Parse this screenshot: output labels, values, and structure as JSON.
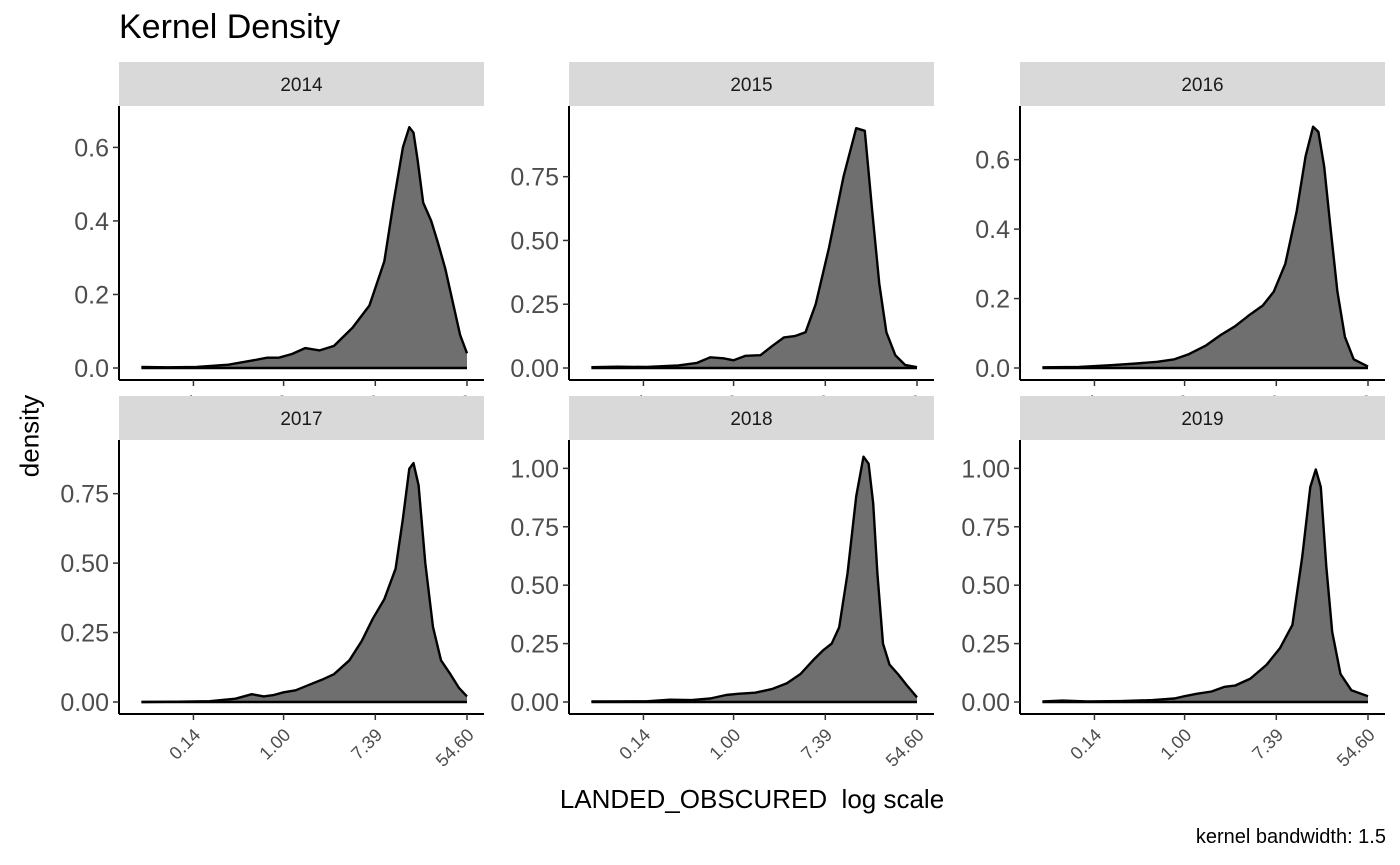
{
  "chart_data": {
    "type": "area",
    "title": "Kernel Density",
    "xlabel": "LANDED_OBSCURED  log scale",
    "ylabel": "density",
    "caption": "kernel bandwidth: 1.5",
    "x_scale": "log",
    "x_ticks": [
      "0.14",
      "1.00",
      "7.39",
      "54.60"
    ],
    "xlim": [
      0.04,
      54.6
    ],
    "grid": false,
    "fill_color": "#6f6f6f",
    "strip_color": "#d9d9d9",
    "panels": [
      {
        "label": "2014",
        "ylim": [
          0,
          0.68
        ],
        "y_ticks": [
          "0.0",
          "0.2",
          "0.4",
          "0.6"
        ],
        "x": [
          0.045,
          0.08,
          0.15,
          0.3,
          0.5,
          0.7,
          0.9,
          1.2,
          1.6,
          2.2,
          3.0,
          4.5,
          6.5,
          9.0,
          11.0,
          13.5,
          15.5,
          17.0,
          18.5,
          21.0,
          25.0,
          29.0,
          34.0,
          40.0,
          47.0,
          54.6
        ],
        "y": [
          0.003,
          0.002,
          0.003,
          0.009,
          0.02,
          0.028,
          0.028,
          0.038,
          0.054,
          0.048,
          0.06,
          0.11,
          0.17,
          0.29,
          0.45,
          0.6,
          0.655,
          0.64,
          0.57,
          0.45,
          0.4,
          0.34,
          0.27,
          0.18,
          0.09,
          0.04
        ]
      },
      {
        "label": "2015",
        "ylim": [
          0,
          0.98
        ],
        "y_ticks": [
          "0.00",
          "0.25",
          "0.50",
          "0.75"
        ],
        "x": [
          0.045,
          0.08,
          0.15,
          0.3,
          0.45,
          0.6,
          0.8,
          1.0,
          1.3,
          1.8,
          2.3,
          3.0,
          3.8,
          4.8,
          6.0,
          8.0,
          11.0,
          14.5,
          17.5,
          20.5,
          24.0,
          28.0,
          34.0,
          42.0,
          54.6
        ],
        "y": [
          0.003,
          0.005,
          0.004,
          0.01,
          0.02,
          0.042,
          0.038,
          0.03,
          0.048,
          0.05,
          0.085,
          0.12,
          0.125,
          0.14,
          0.25,
          0.47,
          0.75,
          0.94,
          0.93,
          0.62,
          0.33,
          0.14,
          0.05,
          0.012,
          0.003
        ]
      },
      {
        "label": "2016",
        "ylim": [
          0,
          0.72
        ],
        "y_ticks": [
          "0.0",
          "0.2",
          "0.4",
          "0.6"
        ],
        "x": [
          0.045,
          0.1,
          0.2,
          0.35,
          0.55,
          0.8,
          1.1,
          1.6,
          2.2,
          3.0,
          4.0,
          5.5,
          7.0,
          9.0,
          11.5,
          14.0,
          16.5,
          18.5,
          21.0,
          24.0,
          28.0,
          33.0,
          40.0,
          54.6
        ],
        "y": [
          0.002,
          0.003,
          0.008,
          0.013,
          0.018,
          0.025,
          0.04,
          0.065,
          0.095,
          0.12,
          0.15,
          0.18,
          0.22,
          0.3,
          0.45,
          0.61,
          0.695,
          0.68,
          0.58,
          0.41,
          0.22,
          0.09,
          0.025,
          0.004
        ]
      },
      {
        "label": "2017",
        "ylim": [
          0,
          0.9
        ],
        "y_ticks": [
          "0.00",
          "0.25",
          "0.50",
          "0.75"
        ],
        "x": [
          0.045,
          0.1,
          0.2,
          0.35,
          0.5,
          0.65,
          0.8,
          1.0,
          1.3,
          1.7,
          2.3,
          3.0,
          4.2,
          5.5,
          7.0,
          9.0,
          11.5,
          13.5,
          15.5,
          17.0,
          19.0,
          22.0,
          26.0,
          31.0,
          38.0,
          46.0,
          54.6
        ],
        "y": [
          0.0,
          0.001,
          0.003,
          0.012,
          0.028,
          0.02,
          0.025,
          0.035,
          0.042,
          0.06,
          0.08,
          0.1,
          0.15,
          0.22,
          0.3,
          0.37,
          0.48,
          0.66,
          0.84,
          0.86,
          0.78,
          0.5,
          0.27,
          0.15,
          0.1,
          0.05,
          0.02
        ]
      },
      {
        "label": "2018",
        "ylim": [
          0,
          1.07
        ],
        "y_ticks": [
          "0.00",
          "0.25",
          "0.50",
          "0.75",
          "1.00"
        ],
        "x": [
          0.045,
          0.15,
          0.25,
          0.4,
          0.6,
          0.85,
          1.1,
          1.6,
          2.3,
          3.2,
          4.3,
          5.7,
          7.0,
          8.5,
          10.0,
          12.0,
          14.5,
          17.0,
          19.0,
          21.0,
          23.0,
          26.0,
          30.0,
          36.0,
          44.0,
          54.6
        ],
        "y": [
          0.002,
          0.003,
          0.01,
          0.008,
          0.015,
          0.03,
          0.035,
          0.04,
          0.055,
          0.08,
          0.12,
          0.18,
          0.22,
          0.25,
          0.32,
          0.55,
          0.88,
          1.05,
          1.02,
          0.85,
          0.55,
          0.25,
          0.16,
          0.12,
          0.07,
          0.02
        ]
      },
      {
        "label": "2019",
        "ylim": [
          0,
          1.07
        ],
        "y_ticks": [
          "0.00",
          "0.25",
          "0.50",
          "0.75",
          "1.00"
        ],
        "x": [
          0.045,
          0.07,
          0.12,
          0.25,
          0.5,
          0.8,
          1.0,
          1.3,
          1.8,
          2.4,
          3.0,
          4.2,
          6.0,
          8.0,
          10.5,
          13.0,
          15.5,
          17.5,
          19.5,
          22.0,
          25.0,
          30.0,
          38.0,
          54.6
        ],
        "y": [
          0.002,
          0.006,
          0.002,
          0.004,
          0.008,
          0.015,
          0.025,
          0.035,
          0.045,
          0.065,
          0.07,
          0.1,
          0.16,
          0.23,
          0.33,
          0.62,
          0.92,
          0.995,
          0.92,
          0.58,
          0.3,
          0.12,
          0.05,
          0.025
        ]
      }
    ]
  }
}
